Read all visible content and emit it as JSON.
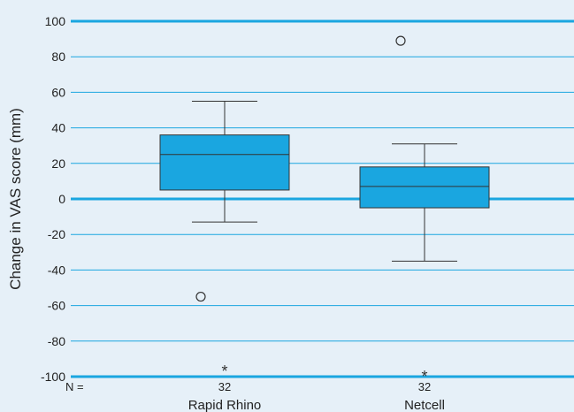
{
  "chart_data": {
    "type": "box",
    "ylabel": "Change in VAS score (mm)",
    "ylim": [
      -100,
      100
    ],
    "yticks": [
      100,
      80,
      60,
      40,
      20,
      0,
      -20,
      -40,
      -60,
      -80,
      -100
    ],
    "grid": true,
    "n_prefix": "N =",
    "colors": {
      "box": "#1aa6e0",
      "grid": "#1aa6e0",
      "line": "#333333",
      "background": "#e6f0f8"
    },
    "boxes": [
      {
        "category": "Rapid Rhino",
        "n": "32",
        "whisker_low": -13,
        "q1": 5,
        "median": 25,
        "q3": 36,
        "whisker_high": 55,
        "outliers": [
          -55
        ],
        "extremes": [
          -95
        ]
      },
      {
        "category": "Netcell",
        "n": "32",
        "whisker_low": -35,
        "q1": -5,
        "median": 7,
        "q3": 18,
        "whisker_high": 31,
        "outliers": [
          89
        ],
        "extremes": [
          -98
        ]
      }
    ]
  }
}
